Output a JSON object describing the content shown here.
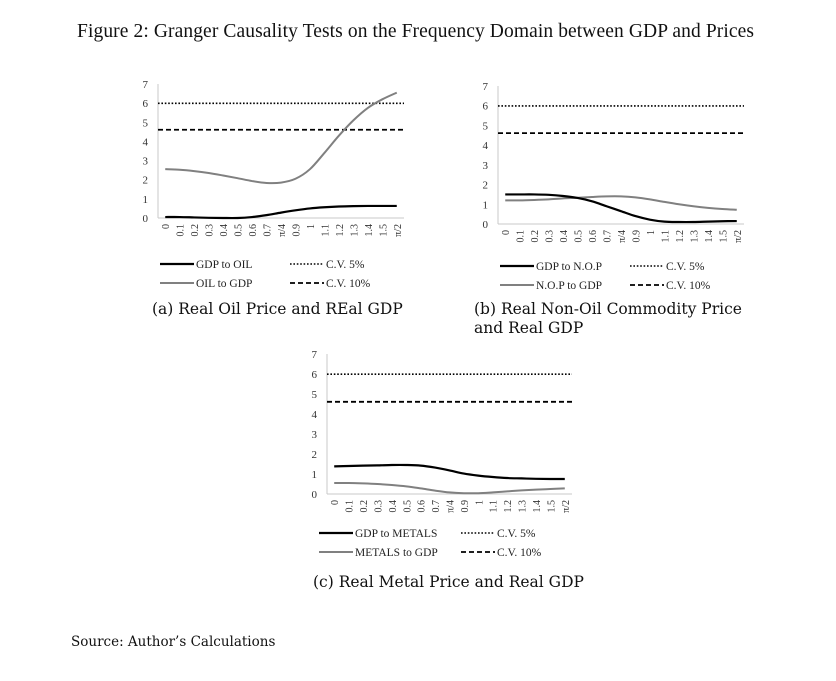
{
  "figure_title": "Figure 2: Granger Causality Tests on the Frequency Domain between GDP and Prices",
  "source": "Source: Author’s Calculations",
  "colors": {
    "black_series": "#000000",
    "gray_series": "#808080",
    "cv_line": "#000000",
    "axis": "#c8c8c8"
  },
  "chart_data": [
    {
      "type": "line",
      "id": "a",
      "caption": "(a) Real Oil Price and REal GDP",
      "categories": [
        "0",
        "0.1",
        "0.2",
        "0.3",
        "0.4",
        "0.5",
        "0.6",
        "0.7",
        "π/4",
        "0.9",
        "1",
        "1.1",
        "1.2",
        "1.3",
        "1.4",
        "1.5",
        "π/2"
      ],
      "ylim": [
        0,
        7
      ],
      "yticks": [
        0,
        1,
        2,
        3,
        4,
        5,
        6,
        7
      ],
      "grid": false,
      "series": [
        {
          "name": "GDP to OIL",
          "style": "solid-black",
          "values": [
            0.05,
            0.05,
            0.03,
            0.01,
            0.0,
            0.0,
            0.05,
            0.15,
            0.28,
            0.4,
            0.5,
            0.56,
            0.6,
            0.62,
            0.63,
            0.63,
            0.63
          ]
        },
        {
          "name": "OIL to GDP",
          "style": "solid-gray",
          "values": [
            2.55,
            2.52,
            2.45,
            2.35,
            2.22,
            2.08,
            1.93,
            1.83,
            1.85,
            2.05,
            2.55,
            3.4,
            4.3,
            5.1,
            5.75,
            6.2,
            6.55
          ]
        },
        {
          "name": "C.V. 5%",
          "style": "dotted",
          "values": [
            5.99,
            5.99,
            5.99,
            5.99,
            5.99,
            5.99,
            5.99,
            5.99,
            5.99,
            5.99,
            5.99,
            5.99,
            5.99,
            5.99,
            5.99,
            5.99,
            5.99
          ]
        },
        {
          "name": "C.V. 10%",
          "style": "dashed",
          "values": [
            4.61,
            4.61,
            4.61,
            4.61,
            4.61,
            4.61,
            4.61,
            4.61,
            4.61,
            4.61,
            4.61,
            4.61,
            4.61,
            4.61,
            4.61,
            4.61,
            4.61
          ]
        }
      ],
      "legend": "bottom"
    },
    {
      "type": "line",
      "id": "b",
      "caption": "(b) Real Non-Oil Commodity Price and Real GDP",
      "categories": [
        "0",
        "0.1",
        "0.2",
        "0.3",
        "0.4",
        "0.5",
        "0.6",
        "0.7",
        "π/4",
        "0.9",
        "1",
        "1.1",
        "1.2",
        "1.3",
        "1.4",
        "1.5",
        "π/2"
      ],
      "ylim": [
        0,
        7
      ],
      "yticks": [
        0,
        1,
        2,
        3,
        4,
        5,
        6,
        7
      ],
      "grid": false,
      "series": [
        {
          "name": "GDP to N.O.P",
          "style": "solid-black",
          "values": [
            1.5,
            1.5,
            1.5,
            1.48,
            1.42,
            1.32,
            1.15,
            0.9,
            0.65,
            0.4,
            0.22,
            0.12,
            0.1,
            0.1,
            0.12,
            0.14,
            0.15
          ]
        },
        {
          "name": "N.O.P to GDP",
          "style": "solid-gray",
          "values": [
            1.2,
            1.2,
            1.22,
            1.25,
            1.3,
            1.33,
            1.37,
            1.4,
            1.4,
            1.35,
            1.25,
            1.12,
            1.0,
            0.9,
            0.82,
            0.76,
            0.72
          ]
        },
        {
          "name": "C.V. 5%",
          "style": "dotted",
          "values": [
            5.99,
            5.99,
            5.99,
            5.99,
            5.99,
            5.99,
            5.99,
            5.99,
            5.99,
            5.99,
            5.99,
            5.99,
            5.99,
            5.99,
            5.99,
            5.99,
            5.99
          ]
        },
        {
          "name": "C.V. 10%",
          "style": "dashed",
          "values": [
            4.61,
            4.61,
            4.61,
            4.61,
            4.61,
            4.61,
            4.61,
            4.61,
            4.61,
            4.61,
            4.61,
            4.61,
            4.61,
            4.61,
            4.61,
            4.61,
            4.61
          ]
        }
      ],
      "legend": "bottom"
    },
    {
      "type": "line",
      "id": "c",
      "caption": "(c) Real Metal Price and Real GDP",
      "categories": [
        "0",
        "0.1",
        "0.2",
        "0.3",
        "0.4",
        "0.5",
        "0.6",
        "0.7",
        "π/4",
        "0.9",
        "1",
        "1.1",
        "1.2",
        "1.3",
        "1.4",
        "1.5",
        "π/2"
      ],
      "ylim": [
        0,
        7
      ],
      "yticks": [
        0,
        1,
        2,
        3,
        4,
        5,
        6,
        7
      ],
      "grid": false,
      "series": [
        {
          "name": "GDP to METALS",
          "style": "solid-black",
          "values": [
            1.38,
            1.4,
            1.42,
            1.43,
            1.45,
            1.45,
            1.42,
            1.32,
            1.18,
            1.02,
            0.92,
            0.85,
            0.8,
            0.78,
            0.76,
            0.75,
            0.75
          ]
        },
        {
          "name": "METALS to GDP",
          "style": "solid-gray",
          "values": [
            0.55,
            0.55,
            0.53,
            0.5,
            0.45,
            0.38,
            0.28,
            0.17,
            0.08,
            0.04,
            0.04,
            0.08,
            0.13,
            0.18,
            0.22,
            0.25,
            0.28
          ]
        },
        {
          "name": "C.V. 5%",
          "style": "dotted",
          "values": [
            5.99,
            5.99,
            5.99,
            5.99,
            5.99,
            5.99,
            5.99,
            5.99,
            5.99,
            5.99,
            5.99,
            5.99,
            5.99,
            5.99,
            5.99,
            5.99,
            5.99
          ]
        },
        {
          "name": "C.V. 10%",
          "style": "dashed",
          "values": [
            4.61,
            4.61,
            4.61,
            4.61,
            4.61,
            4.61,
            4.61,
            4.61,
            4.61,
            4.61,
            4.61,
            4.61,
            4.61,
            4.61,
            4.61,
            4.61,
            4.61
          ]
        }
      ],
      "legend": "bottom"
    }
  ]
}
